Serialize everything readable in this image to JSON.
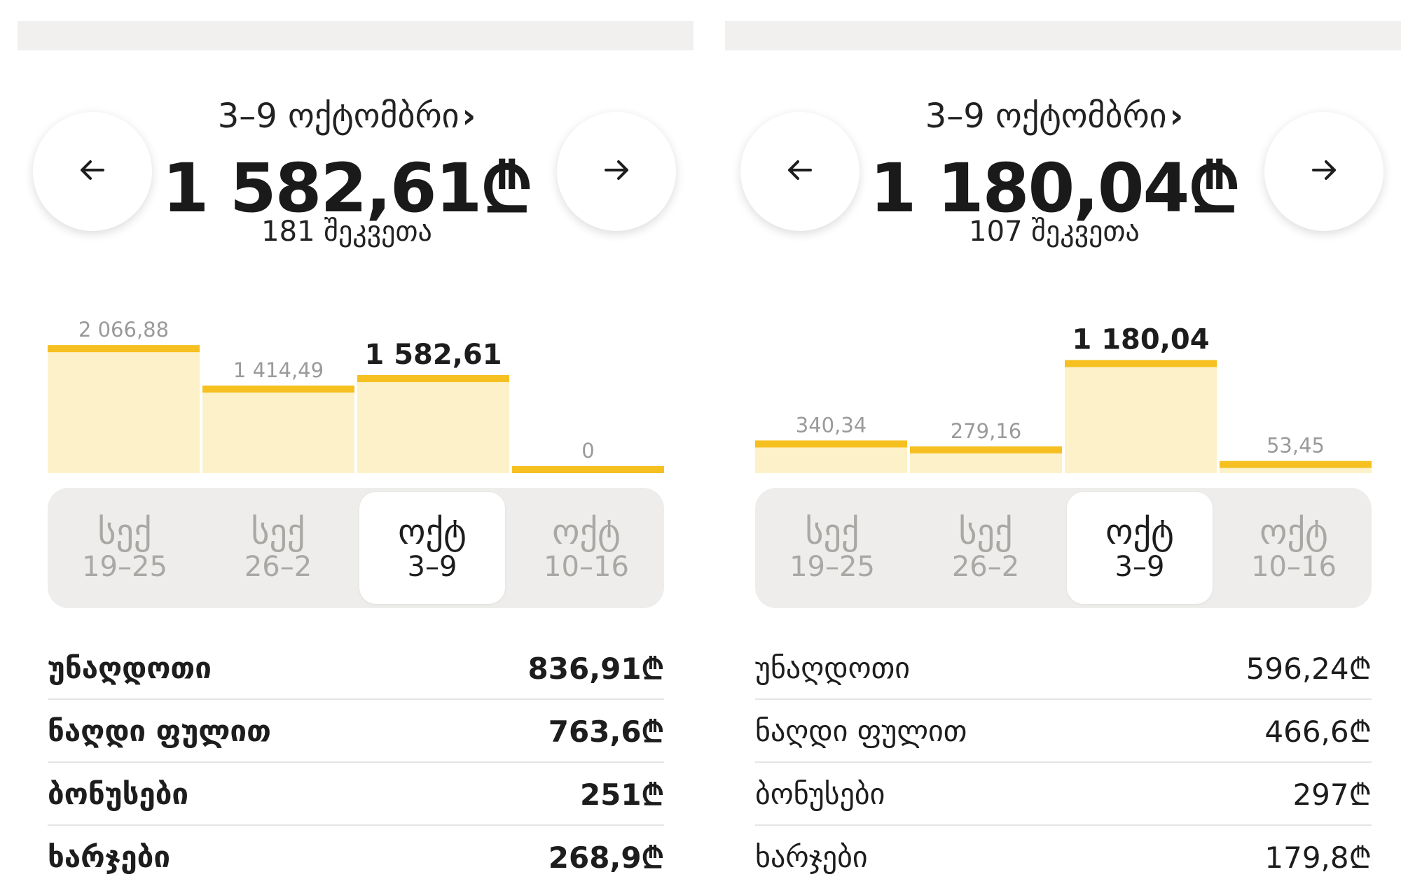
{
  "currency_symbol": "₾",
  "colors": {
    "bar_fill": "#fdf1c9",
    "bar_top": "#f5c020",
    "label_dim": "#9a9a9a",
    "label_active": "#1d1d1d"
  },
  "icons": {
    "prev": "arrow-left-icon",
    "next": "arrow-right-icon"
  },
  "panels": [
    {
      "period_title": "3–9 ოქტომბრი",
      "period_chevron": "›",
      "total": "1 582,61₾",
      "orders": "181 შეკვეთა",
      "chart_data": {
        "type": "bar",
        "categories": [
          "სექ 19–25",
          "სექ 26–2",
          "ოქტ 3–9",
          "ოქტ 10–16"
        ],
        "values": [
          2066.88,
          1414.49,
          1582.61,
          0
        ],
        "value_labels": [
          "2 066,88",
          "1 414,49",
          "1 582,61",
          "0"
        ],
        "active_index": 2,
        "ylim": [
          0,
          2600
        ]
      },
      "weeks": [
        {
          "month": "სექ",
          "days": "19–25"
        },
        {
          "month": "სექ",
          "days": "26–2"
        },
        {
          "month": "ოქტ",
          "days": "3–9"
        },
        {
          "month": "ოქტ",
          "days": "10–16"
        }
      ],
      "breakdown": [
        {
          "label": "უნაღდოთი",
          "value": "836,91₾"
        },
        {
          "label": "ნაღდი ფულით",
          "value": "763,6₾"
        },
        {
          "label": "ბონუსები",
          "value": "251₾"
        },
        {
          "label": "ხარჯები",
          "value": "268,9₾"
        }
      ]
    },
    {
      "period_title": "3–9 ოქტომბრი",
      "period_chevron": "›",
      "total": "1 180,04₾",
      "orders": "107 შეკვეთა",
      "chart_data": {
        "type": "bar",
        "categories": [
          "სექ 19–25",
          "სექ 26–2",
          "ოქტ 3–9",
          "ოქტ 10–16"
        ],
        "values": [
          340.34,
          279.16,
          1180.04,
          53.45
        ],
        "value_labels": [
          "340,34",
          "279,16",
          "1 180,04",
          "53,45"
        ],
        "active_index": 2,
        "ylim": [
          0,
          1680
        ]
      },
      "weeks": [
        {
          "month": "სექ",
          "days": "19–25"
        },
        {
          "month": "სექ",
          "days": "26–2"
        },
        {
          "month": "ოქტ",
          "days": "3–9"
        },
        {
          "month": "ოქტ",
          "days": "10–16"
        }
      ],
      "breakdown": [
        {
          "label": "უნაღდოთი",
          "value": "596,24₾"
        },
        {
          "label": "ნაღდი ფულით",
          "value": "466,6₾"
        },
        {
          "label": "ბონუსები",
          "value": "297₾"
        },
        {
          "label": "ხარჯები",
          "value": "179,8₾"
        }
      ]
    }
  ]
}
